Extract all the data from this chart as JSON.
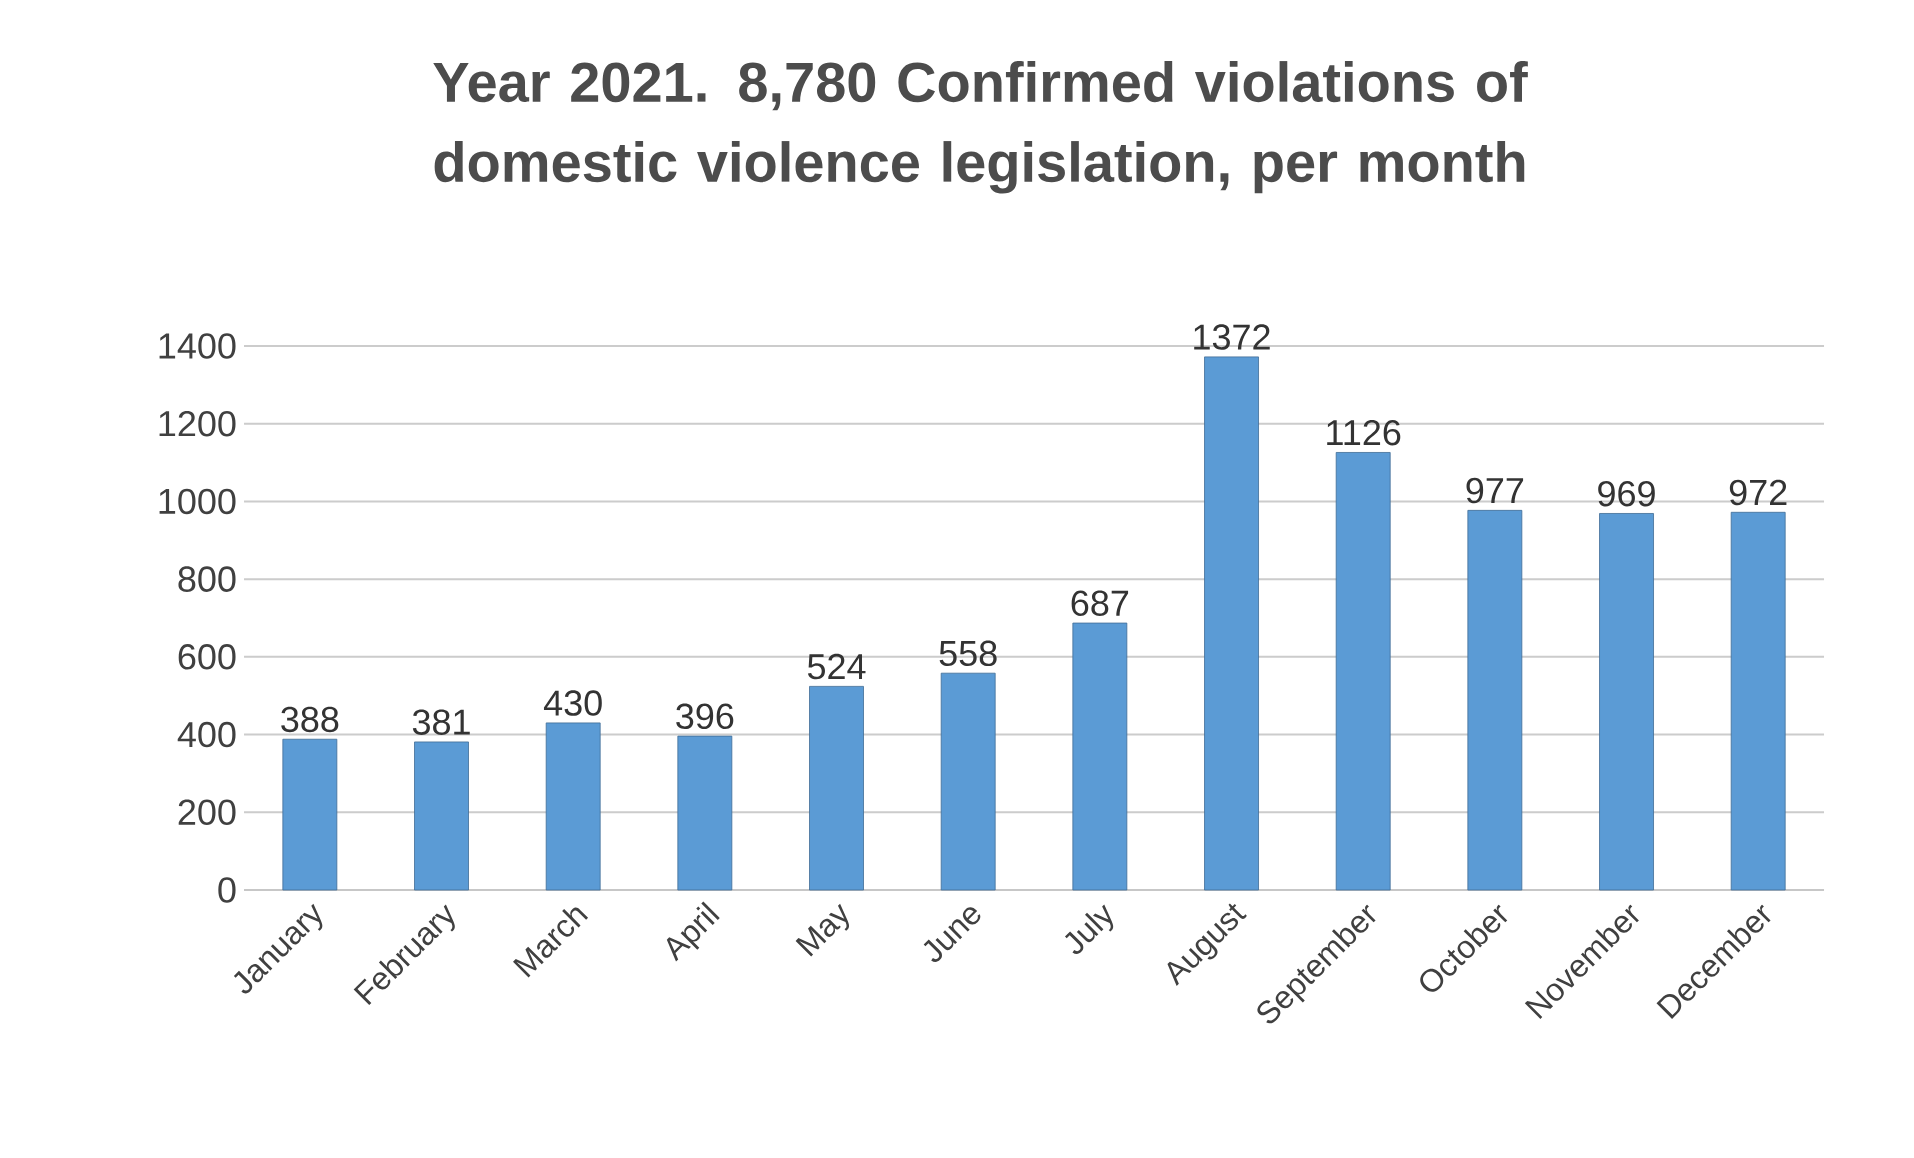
{
  "chart_data": {
    "type": "bar",
    "title": "Year 2021. 8,780 Confirmed violations of domestic violence legislation, per month",
    "categories": [
      "January",
      "February",
      "March",
      "April",
      "May",
      "June",
      "July",
      "August",
      "September",
      "October",
      "November",
      "December"
    ],
    "values": [
      388,
      381,
      430,
      396,
      524,
      558,
      687,
      1372,
      1126,
      977,
      969,
      972
    ],
    "color": "#5b9bd5",
    "ylim": [
      0,
      1400
    ],
    "yticks": [
      0,
      200,
      400,
      600,
      800,
      1000,
      1200,
      1400
    ],
    "grid": "y",
    "data_labels": true
  }
}
